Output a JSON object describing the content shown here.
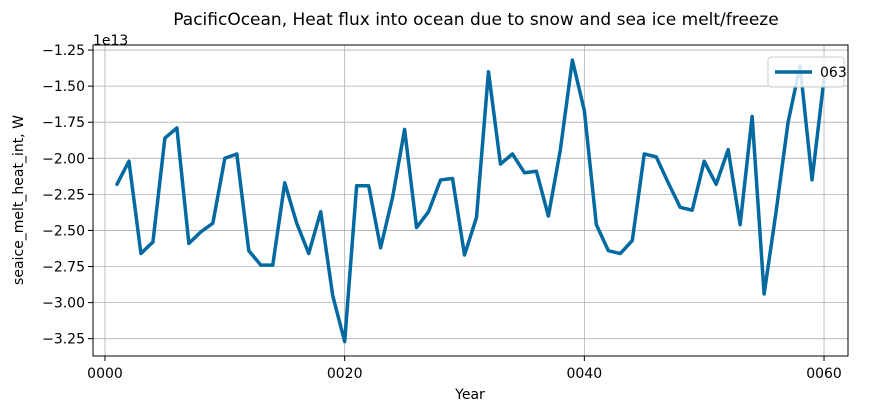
{
  "chart_data": {
    "type": "line",
    "title": "PacificOcean, Heat flux into ocean due to snow and sea ice melt/freeze",
    "xlabel": "Year",
    "ylabel": "seaice_melt_heat_int, W",
    "y_offset_label": "1e13",
    "xlim": [
      -1,
      62
    ],
    "ylim": [
      -3.37,
      -1.215
    ],
    "x_ticks": [
      0,
      20,
      40,
      60
    ],
    "x_tick_labels": [
      "0000",
      "0020",
      "0040",
      "0060"
    ],
    "y_ticks": [
      -3.25,
      -3.0,
      -2.75,
      -2.5,
      -2.25,
      -2.0,
      -1.75,
      -1.5,
      -1.25
    ],
    "y_tick_labels": [
      "−3.25",
      "−3.00",
      "−2.75",
      "−2.50",
      "−2.25",
      "−2.00",
      "−1.75",
      "−1.50",
      "−1.25"
    ],
    "grid": true,
    "legend_position": "top-right",
    "series": [
      {
        "name": "063",
        "color": "#0369a1",
        "x": [
          1,
          2,
          3,
          4,
          5,
          6,
          7,
          8,
          9,
          10,
          11,
          12,
          13,
          14,
          15,
          16,
          17,
          18,
          19,
          20,
          21,
          22,
          23,
          24,
          25,
          26,
          27,
          28,
          29,
          30,
          31,
          32,
          33,
          34,
          35,
          36,
          37,
          38,
          39,
          40,
          41,
          42,
          43,
          44,
          45,
          46,
          47,
          48,
          49,
          50,
          51,
          52,
          53,
          54,
          55,
          56,
          57,
          58,
          59,
          60
        ],
        "values": [
          -2.18,
          -2.02,
          -2.66,
          -2.58,
          -1.86,
          -1.79,
          -2.59,
          -2.51,
          -2.45,
          -2.0,
          -1.97,
          -2.64,
          -2.74,
          -2.74,
          -2.17,
          -2.45,
          -2.66,
          -2.37,
          -2.95,
          -3.27,
          -2.19,
          -2.19,
          -2.62,
          -2.27,
          -1.8,
          -2.48,
          -2.37,
          -2.15,
          -2.14,
          -2.67,
          -2.41,
          -1.4,
          -2.04,
          -1.97,
          -2.1,
          -2.09,
          -2.4,
          -1.94,
          -1.32,
          -1.67,
          -2.46,
          -2.64,
          -2.66,
          -2.57,
          -1.97,
          -1.99,
          -2.17,
          -2.34,
          -2.36,
          -2.02,
          -2.18,
          -1.94,
          -2.46,
          -1.71,
          -2.94,
          -2.37,
          -1.75,
          -1.36,
          -2.15,
          -1.45
        ]
      }
    ]
  }
}
